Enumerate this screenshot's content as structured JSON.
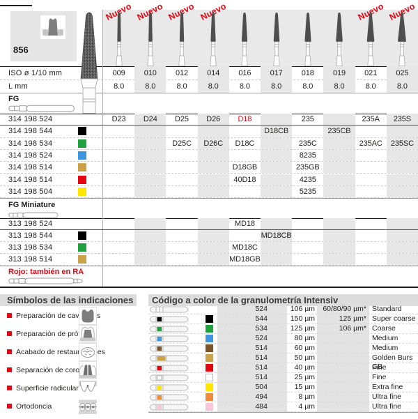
{
  "header": {
    "figure_number": "856",
    "new_label": "Nuevo",
    "new_columns": [
      0,
      1,
      2,
      3,
      8,
      9
    ],
    "iso_label": "ISO ø 1/10 mm",
    "iso_values": [
      "009",
      "010",
      "012",
      "014",
      "016",
      "017",
      "018",
      "019",
      "021",
      "025"
    ],
    "l_label": "L mm",
    "l_values": [
      "8.0",
      "8.0",
      "8.0",
      "8.0",
      "8.0",
      "8.0",
      "8.0",
      "8.0",
      "8.0",
      "8.0"
    ]
  },
  "fg": {
    "label": "FG",
    "rows": [
      {
        "code": "314 198 524",
        "color": null,
        "cells": {
          "0": "D23",
          "1": "D24",
          "2": "D25",
          "3": "D26",
          "4": "D18",
          "6": "235",
          "8": "235A",
          "9": "235S"
        },
        "red_cells": [
          4
        ]
      },
      {
        "code": "314 198 544",
        "color": "#000000",
        "cells": {
          "5": "D18CB",
          "7": "235CB"
        }
      },
      {
        "code": "314 198 534",
        "color": "#22a23f",
        "cells": {
          "2": "D25C",
          "3": "D26C",
          "4": "D18C",
          "6": "235C",
          "8": "235AC",
          "9": "235SC"
        }
      },
      {
        "code": "314 198 524",
        "color": "#3e96e0",
        "cells": {
          "6": "8235"
        }
      },
      {
        "code": "314 198 514",
        "color": "#c9a24a",
        "cells": {
          "4": "D18GB",
          "6": "235GB"
        }
      },
      {
        "code": "314 198 514",
        "color": "#e30613",
        "cells": {
          "4": "40D18",
          "6": "4235"
        }
      },
      {
        "code": "314 198 504",
        "color": "#ffe500",
        "cells": {
          "6": "5235"
        }
      }
    ]
  },
  "fg_miniature": {
    "label": "FG Miniature",
    "rows": [
      {
        "code": "313 198 524",
        "color": null,
        "cells": {
          "4": "MD18"
        }
      },
      {
        "code": "313 198 544",
        "color": "#000000",
        "cells": {
          "5": "MD18CB"
        }
      },
      {
        "code": "313 198 534",
        "color": "#22a23f",
        "cells": {
          "4": "MD18C"
        }
      },
      {
        "code": "313 198 514",
        "color": "#c9a24a",
        "cells": {
          "4": "MD18GB"
        }
      }
    ],
    "note": "Rojo: también en RA"
  },
  "symbols": {
    "title": "Símbolos de las indicaciones",
    "items": [
      {
        "label": "Preparación de cavidades",
        "icon": "cavity-preparation-icon"
      },
      {
        "label": "Preparación de prótesis",
        "icon": "prosthesis-preparation-icon"
      },
      {
        "label": "Acabado de restauraciones",
        "icon": "restoration-finishing-icon"
      },
      {
        "label": "Separación de coronas",
        "icon": "crown-separation-icon"
      },
      {
        "label": "Superficie radicular",
        "icon": "root-surface-icon"
      },
      {
        "label": "Ortodoncia",
        "icon": "orthodontics-icon"
      }
    ]
  },
  "granulometry": {
    "title": "Código a color de la granulometría Intensiv",
    "rows": [
      {
        "code": "524",
        "color": null,
        "size": "106 µm",
        "alt_size": "60/80/90 µm*",
        "name": "Standard"
      },
      {
        "code": "544",
        "color": "#000000",
        "size": "150 µm",
        "alt_size": "125 µm*",
        "name": "Super coarse"
      },
      {
        "code": "534",
        "color": "#22a23f",
        "size": "125 µm",
        "alt_size": "106 µm*",
        "name": "Coarse"
      },
      {
        "code": "524",
        "color": "#3e96e0",
        "size": "80 µm",
        "alt_size": "",
        "name": "Medium"
      },
      {
        "code": "514",
        "color": "#7a5426",
        "size": "60 µm",
        "alt_size": "",
        "name": "Medium"
      },
      {
        "code": "514",
        "color": "#c9a24a",
        "size": "50 µm",
        "alt_size": "",
        "name": "Golden Burs GB"
      },
      {
        "code": "514",
        "color": "#e30613",
        "size": "40 µm",
        "alt_size": "",
        "name": "Fine"
      },
      {
        "code": "514",
        "color": "#ffffff",
        "size": "25 µm",
        "alt_size": "",
        "name": "Fine"
      },
      {
        "code": "504",
        "color": "#ffe500",
        "size": "15 µm",
        "alt_size": "",
        "name": "Extra fine"
      },
      {
        "code": "494",
        "color": "#f08a3c",
        "size": "8 µm",
        "alt_size": "",
        "name": "Ultra fine"
      },
      {
        "code": "484",
        "color": "#f7c6d9",
        "size": "4 µm",
        "alt_size": "",
        "name": "Ultra fine"
      }
    ]
  },
  "colors": {
    "accent_red": "#e30613",
    "stripe_gray": "#e7e7e7",
    "header_gray": "#e9e9e9",
    "bar_gray": "#dcdcdc"
  }
}
